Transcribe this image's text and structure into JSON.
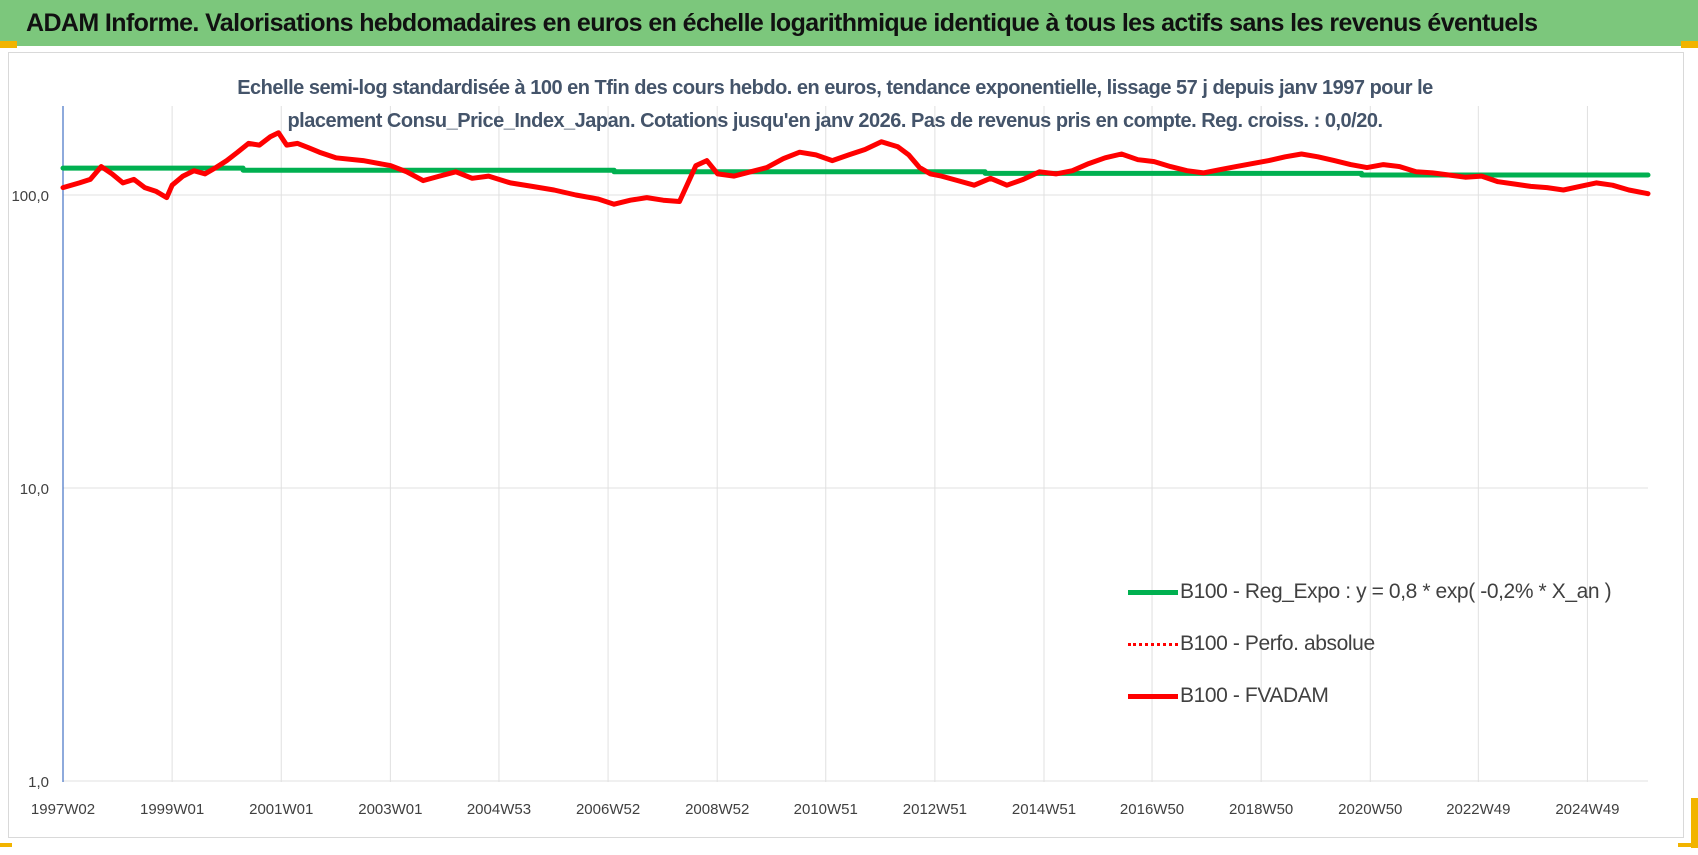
{
  "banner": {
    "title": "ADAM Informe. Valorisations hebdomadaires en euros en échelle logarithmique identique à tous les actifs sans les revenus éventuels"
  },
  "colors": {
    "banner_bg": "#7cc77c",
    "trend": "#00b050",
    "series": "#ff0000",
    "title_text": "#44546a",
    "grid": "#e0e0e0",
    "frame_corner": "#f2b400"
  },
  "chart_data": {
    "type": "line",
    "title": "Echelle semi-log standardisée à 100 en Tfin des cours hebdo. en euros, tendance exponentielle, lissage 57 j depuis janv 1997 pour le placement Consu_Price_Index_Japan. Cotations jusqu'en janv 2026. Pas de revenus pris en compte. Reg. croiss. : 0,0/20.",
    "y_scale": "log",
    "ylim": [
      1,
      220
    ],
    "y_ticks": [
      1,
      10,
      100
    ],
    "y_tick_labels": [
      "1,0",
      "10,0",
      "100,0"
    ],
    "xlim": [
      1997.0,
      2026.05
    ],
    "x_tick_positions": [
      1997.0,
      1999.0,
      2001.0,
      2003.0,
      2004.99,
      2006.99,
      2008.99,
      2010.98,
      2012.98,
      2014.98,
      2016.96,
      2018.96,
      2020.96,
      2022.94,
      2024.94
    ],
    "x_tick_labels": [
      "1997W02",
      "1999W01",
      "2001W01",
      "2003W01",
      "2004W53",
      "2006W52",
      "2008W52",
      "2010W51",
      "2012W51",
      "2014W51",
      "2016W50",
      "2018W50",
      "2020W50",
      "2022W49",
      "2024W49"
    ],
    "grid": "vertical and horizontal",
    "legend_position": "bottom-right",
    "series": [
      {
        "name": "B100 - Reg_Expo : y = 0,8 * exp( -0,2% *  X_an )",
        "color": "#00b050",
        "style": "solid",
        "x": [
          1997.0,
          2000.3,
          2000.3,
          2007.1,
          2007.1,
          2013.9,
          2013.9,
          2020.8,
          2020.8,
          2026.05
        ],
        "y": [
          123.5,
          123.5,
          121.5,
          121.5,
          120.0,
          120.0,
          118.5,
          118.5,
          117.0,
          117.0
        ]
      },
      {
        "name": "B100 - Perfo. absolue",
        "color": "#ff0000",
        "style": "dotted",
        "x": [],
        "y": []
      },
      {
        "name": "B100 - FVADAM",
        "color": "#ff0000",
        "style": "solid",
        "x": [
          1997.0,
          1997.3,
          1997.5,
          1997.7,
          1997.9,
          1998.1,
          1998.3,
          1998.5,
          1998.7,
          1998.9,
          1999.0,
          1999.2,
          1999.4,
          1999.6,
          1999.8,
          2000.0,
          2000.2,
          2000.4,
          2000.6,
          2000.8,
          2000.95,
          2001.1,
          2001.3,
          2001.5,
          2001.7,
          2002.0,
          2002.5,
          2003.0,
          2003.3,
          2003.6,
          2003.9,
          2004.2,
          2004.5,
          2004.8,
          2005.2,
          2005.6,
          2006.0,
          2006.4,
          2006.8,
          2007.1,
          2007.4,
          2007.7,
          2008.0,
          2008.3,
          2008.6,
          2008.8,
          2009.0,
          2009.3,
          2009.6,
          2009.9,
          2010.2,
          2010.5,
          2010.8,
          2011.1,
          2011.4,
          2011.7,
          2012.0,
          2012.3,
          2012.5,
          2012.7,
          2012.9,
          2013.1,
          2013.4,
          2013.7,
          2014.0,
          2014.3,
          2014.6,
          2014.9,
          2015.2,
          2015.5,
          2015.8,
          2016.1,
          2016.4,
          2016.7,
          2017.0,
          2017.3,
          2017.6,
          2017.9,
          2018.2,
          2018.5,
          2018.8,
          2019.1,
          2019.4,
          2019.7,
          2020.0,
          2020.3,
          2020.6,
          2020.9,
          2021.2,
          2021.5,
          2021.8,
          2022.1,
          2022.4,
          2022.7,
          2023.0,
          2023.3,
          2023.6,
          2023.9,
          2024.2,
          2024.5,
          2024.8,
          2025.1,
          2025.4,
          2025.7,
          2026.05
        ],
        "y": [
          106,
          110,
          113,
          125,
          118,
          110,
          113,
          106,
          103,
          98,
          108,
          116,
          121,
          118,
          124,
          131,
          140,
          150,
          148,
          158,
          163,
          148,
          150,
          145,
          140,
          134,
          131,
          126,
          120,
          112,
          116,
          120,
          114,
          116,
          110,
          107,
          104,
          100,
          97,
          93,
          96,
          98,
          96,
          95,
          126,
          131,
          118,
          116,
          120,
          124,
          133,
          140,
          137,
          131,
          137,
          143,
          152,
          146,
          137,
          124,
          118,
          116,
          112,
          108,
          114,
          108,
          113,
          120,
          118,
          121,
          128,
          134,
          138,
          132,
          130,
          125,
          121,
          119,
          122,
          125,
          128,
          131,
          135,
          138,
          135,
          131,
          127,
          124,
          127,
          125,
          120,
          119,
          117,
          115,
          116,
          111,
          109,
          107,
          106,
          104,
          107,
          110,
          108,
          104,
          101
        ]
      }
    ]
  }
}
